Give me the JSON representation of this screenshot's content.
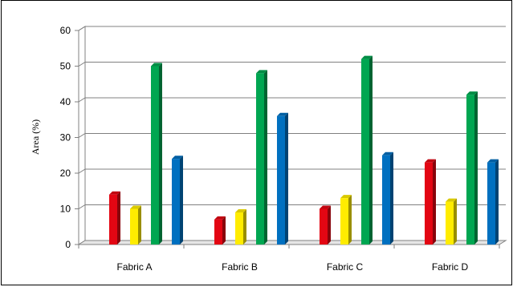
{
  "chart_data": {
    "type": "bar",
    "categories": [
      "Fabric A",
      "Fabric B",
      "Fabric C",
      "Fabric D"
    ],
    "series": [
      {
        "color": "#e30613",
        "values": [
          14,
          7,
          10,
          23
        ]
      },
      {
        "color": "#ffec00",
        "values": [
          10,
          9,
          13,
          12
        ]
      },
      {
        "color": "#00a651",
        "values": [
          50,
          48,
          52,
          42
        ]
      },
      {
        "color": "#0070c0",
        "values": [
          24,
          36,
          25,
          23
        ]
      }
    ],
    "title": "",
    "xlabel": "",
    "ylabel": "Area (%)",
    "ylim": [
      0,
      60
    ],
    "yticks": [
      0,
      10,
      20,
      30,
      40,
      50,
      60
    ],
    "grid": true,
    "legend": "none",
    "style": "3d-bars"
  }
}
